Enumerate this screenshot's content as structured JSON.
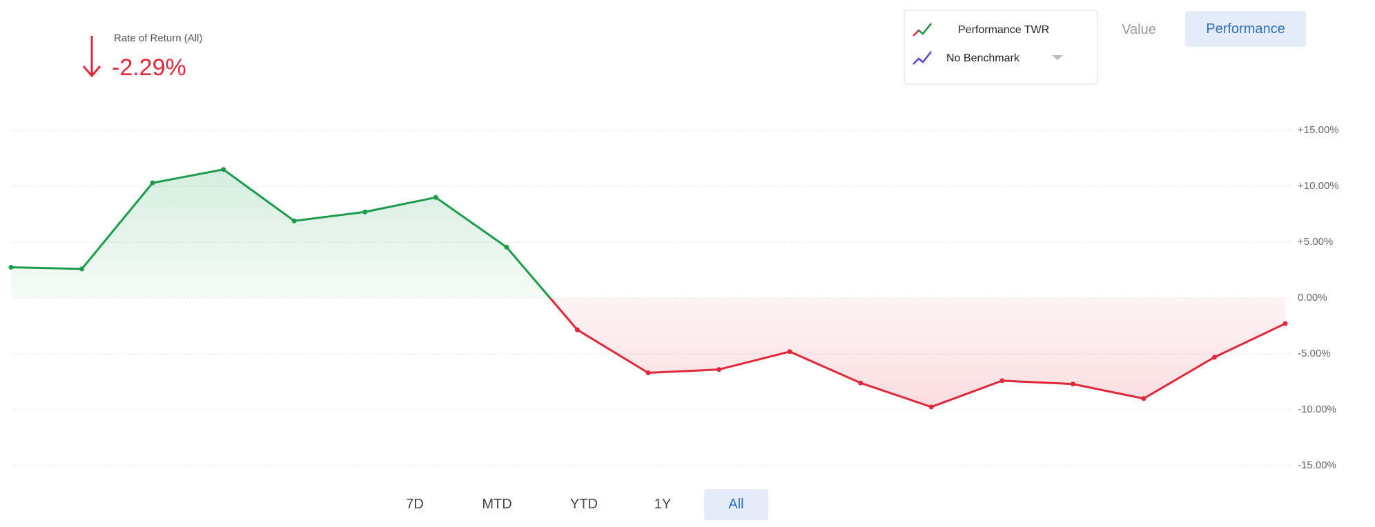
{
  "summary": {
    "label": "Rate of Return (All)",
    "value": "-2.29%"
  },
  "view_toggle": [
    "Value",
    "Performance"
  ],
  "benchmark": "No Benchmark",
  "ranges": [
    "7D",
    "MTD",
    "YTD",
    "1Y",
    "All"
  ],
  "chart_data": {
    "type": "line",
    "categories": [
      null,
      null,
      null,
      null,
      null,
      null,
      null,
      null,
      null,
      null,
      null,
      null,
      null,
      null,
      null,
      null,
      null,
      null,
      null
    ],
    "series": [
      {
        "name": "Performance TWR",
        "color": "#1a9c4a",
        "negative_color": "#e0283a",
        "values": [
          2.75,
          2.6,
          10.3,
          11.5,
          6.9,
          7.7,
          9.0,
          4.55,
          -2.85,
          -6.7,
          -6.4,
          -4.8,
          -7.6,
          -9.75,
          -7.4,
          -7.7,
          -9.0,
          -5.3,
          -2.29
        ]
      }
    ],
    "ylim": [
      -15,
      15
    ],
    "yticks": [
      {
        "value": 15,
        "label": "+15.00%"
      },
      {
        "value": 10,
        "label": "+10.00%"
      },
      {
        "value": 5,
        "label": "+5.00%"
      },
      {
        "value": 0,
        "label": "0.00%"
      },
      {
        "value": -5,
        "label": "-5.00%"
      },
      {
        "value": -10,
        "label": "-10.00%"
      },
      {
        "value": -15,
        "label": "-15.00%"
      }
    ],
    "grid": true
  }
}
